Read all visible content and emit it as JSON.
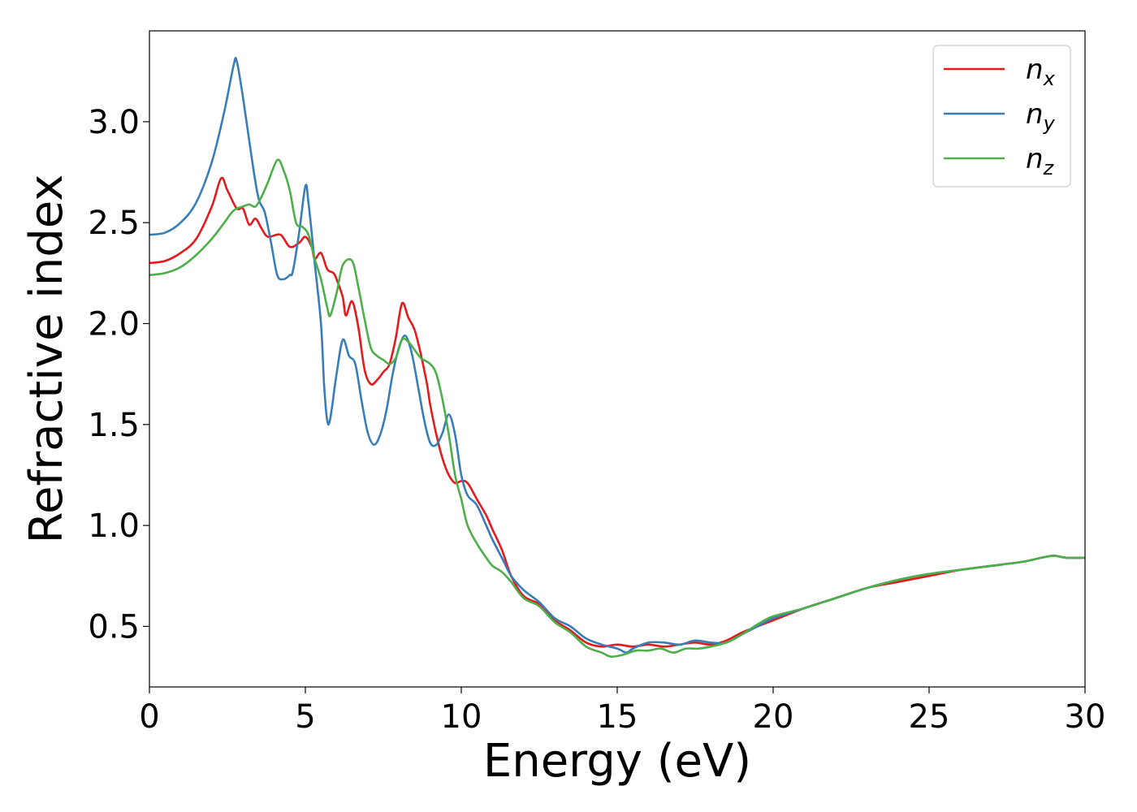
{
  "chart_data": {
    "type": "line",
    "title": "",
    "xlabel": "Energy (eV)",
    "ylabel": "Refractive index",
    "xlim": [
      0,
      30
    ],
    "ylim": [
      0.2,
      3.45
    ],
    "xticks": [
      0,
      5,
      10,
      15,
      20,
      25,
      30
    ],
    "xtick_labels": [
      "0",
      "5",
      "10",
      "15",
      "20",
      "25",
      "30"
    ],
    "yticks": [
      0.5,
      1.0,
      1.5,
      2.0,
      2.5,
      3.0
    ],
    "ytick_labels": [
      "0.5",
      "1.0",
      "1.5",
      "2.0",
      "2.5",
      "3.0"
    ],
    "grid": false,
    "legend_position": "top-right",
    "series": [
      {
        "name": "n_x",
        "label_base": "n",
        "label_sub": "x",
        "color": "#e41a1c",
        "points": [
          [
            0,
            2.3
          ],
          [
            0.5,
            2.31
          ],
          [
            1.0,
            2.35
          ],
          [
            1.5,
            2.42
          ],
          [
            2.0,
            2.58
          ],
          [
            2.3,
            2.72
          ],
          [
            2.5,
            2.66
          ],
          [
            2.8,
            2.57
          ],
          [
            3.0,
            2.57
          ],
          [
            3.2,
            2.49
          ],
          [
            3.4,
            2.52
          ],
          [
            3.6,
            2.47
          ],
          [
            3.8,
            2.43
          ],
          [
            4.2,
            2.44
          ],
          [
            4.5,
            2.38
          ],
          [
            4.8,
            2.4
          ],
          [
            5.0,
            2.43
          ],
          [
            5.2,
            2.38
          ],
          [
            5.3,
            2.32
          ],
          [
            5.5,
            2.35
          ],
          [
            5.7,
            2.27
          ],
          [
            5.9,
            2.25
          ],
          [
            6.0,
            2.22
          ],
          [
            6.2,
            2.13
          ],
          [
            6.3,
            2.04
          ],
          [
            6.5,
            2.11
          ],
          [
            6.7,
            1.98
          ],
          [
            6.9,
            1.77
          ],
          [
            7.1,
            1.7
          ],
          [
            7.3,
            1.72
          ],
          [
            7.5,
            1.76
          ],
          [
            7.7,
            1.8
          ],
          [
            7.9,
            1.93
          ],
          [
            8.1,
            2.1
          ],
          [
            8.3,
            2.03
          ],
          [
            8.5,
            1.97
          ],
          [
            8.7,
            1.85
          ],
          [
            8.9,
            1.7
          ],
          [
            9.0,
            1.6
          ],
          [
            9.2,
            1.45
          ],
          [
            9.4,
            1.33
          ],
          [
            9.6,
            1.25
          ],
          [
            9.8,
            1.21
          ],
          [
            10.0,
            1.22
          ],
          [
            10.2,
            1.21
          ],
          [
            10.5,
            1.13
          ],
          [
            10.8,
            1.05
          ],
          [
            11.0,
            0.98
          ],
          [
            11.3,
            0.88
          ],
          [
            11.6,
            0.75
          ],
          [
            12.0,
            0.65
          ],
          [
            12.5,
            0.61
          ],
          [
            13.0,
            0.53
          ],
          [
            13.5,
            0.48
          ],
          [
            14.0,
            0.42
          ],
          [
            14.5,
            0.4
          ],
          [
            15.0,
            0.41
          ],
          [
            15.5,
            0.4
          ],
          [
            16.0,
            0.41
          ],
          [
            16.5,
            0.4
          ],
          [
            17.0,
            0.41
          ],
          [
            17.5,
            0.42
          ],
          [
            18.0,
            0.41
          ],
          [
            18.5,
            0.43
          ],
          [
            19.0,
            0.47
          ],
          [
            19.5,
            0.5
          ],
          [
            20.0,
            0.53
          ],
          [
            21.0,
            0.59
          ],
          [
            22.0,
            0.64
          ],
          [
            23.0,
            0.69
          ],
          [
            24.0,
            0.72
          ],
          [
            25.0,
            0.75
          ],
          [
            26.0,
            0.78
          ],
          [
            27.0,
            0.8
          ],
          [
            28.0,
            0.82
          ],
          [
            28.6,
            0.84
          ],
          [
            29.0,
            0.85
          ],
          [
            29.4,
            0.84
          ],
          [
            30.0,
            0.84
          ]
        ]
      },
      {
        "name": "n_y",
        "label_base": "n",
        "label_sub": "y",
        "color": "#377eb8",
        "points": [
          [
            0,
            2.44
          ],
          [
            0.5,
            2.45
          ],
          [
            1.0,
            2.5
          ],
          [
            1.5,
            2.6
          ],
          [
            2.0,
            2.8
          ],
          [
            2.4,
            3.05
          ],
          [
            2.7,
            3.28
          ],
          [
            2.8,
            3.3
          ],
          [
            3.0,
            3.12
          ],
          [
            3.3,
            2.8
          ],
          [
            3.5,
            2.62
          ],
          [
            3.7,
            2.55
          ],
          [
            3.9,
            2.4
          ],
          [
            4.1,
            2.24
          ],
          [
            4.3,
            2.22
          ],
          [
            4.5,
            2.24
          ],
          [
            4.6,
            2.26
          ],
          [
            4.8,
            2.45
          ],
          [
            5.0,
            2.68
          ],
          [
            5.1,
            2.6
          ],
          [
            5.3,
            2.3
          ],
          [
            5.5,
            2.0
          ],
          [
            5.6,
            1.7
          ],
          [
            5.7,
            1.52
          ],
          [
            5.8,
            1.53
          ],
          [
            6.0,
            1.75
          ],
          [
            6.2,
            1.92
          ],
          [
            6.4,
            1.84
          ],
          [
            6.6,
            1.8
          ],
          [
            6.8,
            1.62
          ],
          [
            7.0,
            1.46
          ],
          [
            7.2,
            1.4
          ],
          [
            7.4,
            1.45
          ],
          [
            7.6,
            1.57
          ],
          [
            7.8,
            1.75
          ],
          [
            8.0,
            1.88
          ],
          [
            8.2,
            1.94
          ],
          [
            8.4,
            1.86
          ],
          [
            8.6,
            1.7
          ],
          [
            8.8,
            1.53
          ],
          [
            9.0,
            1.41
          ],
          [
            9.2,
            1.4
          ],
          [
            9.4,
            1.46
          ],
          [
            9.6,
            1.55
          ],
          [
            9.8,
            1.45
          ],
          [
            10.0,
            1.25
          ],
          [
            10.2,
            1.15
          ],
          [
            10.5,
            1.1
          ],
          [
            10.8,
            1.0
          ],
          [
            11.0,
            0.93
          ],
          [
            11.3,
            0.84
          ],
          [
            11.6,
            0.75
          ],
          [
            12.0,
            0.68
          ],
          [
            12.5,
            0.62
          ],
          [
            13.0,
            0.54
          ],
          [
            13.5,
            0.5
          ],
          [
            14.0,
            0.44
          ],
          [
            14.5,
            0.41
          ],
          [
            15.0,
            0.39
          ],
          [
            15.3,
            0.37
          ],
          [
            15.5,
            0.39
          ],
          [
            16.0,
            0.42
          ],
          [
            16.5,
            0.42
          ],
          [
            17.0,
            0.41
          ],
          [
            17.5,
            0.43
          ],
          [
            18.0,
            0.42
          ],
          [
            18.5,
            0.42
          ],
          [
            19.0,
            0.46
          ],
          [
            19.5,
            0.5
          ],
          [
            20.0,
            0.54
          ],
          [
            21.0,
            0.59
          ],
          [
            22.0,
            0.64
          ],
          [
            23.0,
            0.69
          ],
          [
            24.0,
            0.73
          ],
          [
            25.0,
            0.76
          ],
          [
            26.0,
            0.78
          ],
          [
            27.0,
            0.8
          ],
          [
            28.0,
            0.82
          ],
          [
            28.6,
            0.84
          ],
          [
            29.0,
            0.85
          ],
          [
            29.4,
            0.84
          ],
          [
            30.0,
            0.84
          ]
        ]
      },
      {
        "name": "n_z",
        "label_base": "n",
        "label_sub": "z",
        "color": "#4daf4a",
        "points": [
          [
            0,
            2.24
          ],
          [
            0.5,
            2.25
          ],
          [
            1.0,
            2.28
          ],
          [
            1.5,
            2.34
          ],
          [
            2.0,
            2.42
          ],
          [
            2.4,
            2.5
          ],
          [
            2.7,
            2.56
          ],
          [
            3.0,
            2.58
          ],
          [
            3.2,
            2.59
          ],
          [
            3.4,
            2.58
          ],
          [
            3.6,
            2.63
          ],
          [
            3.8,
            2.7
          ],
          [
            4.1,
            2.81
          ],
          [
            4.3,
            2.76
          ],
          [
            4.5,
            2.66
          ],
          [
            4.7,
            2.5
          ],
          [
            4.9,
            2.48
          ],
          [
            5.1,
            2.44
          ],
          [
            5.3,
            2.32
          ],
          [
            5.5,
            2.22
          ],
          [
            5.7,
            2.08
          ],
          [
            5.8,
            2.04
          ],
          [
            6.0,
            2.15
          ],
          [
            6.2,
            2.29
          ],
          [
            6.5,
            2.31
          ],
          [
            6.7,
            2.18
          ],
          [
            6.9,
            2.02
          ],
          [
            7.1,
            1.88
          ],
          [
            7.3,
            1.84
          ],
          [
            7.5,
            1.82
          ],
          [
            7.7,
            1.8
          ],
          [
            7.9,
            1.83
          ],
          [
            8.1,
            1.92
          ],
          [
            8.3,
            1.91
          ],
          [
            8.5,
            1.87
          ],
          [
            8.7,
            1.83
          ],
          [
            9.0,
            1.8
          ],
          [
            9.2,
            1.75
          ],
          [
            9.4,
            1.62
          ],
          [
            9.6,
            1.45
          ],
          [
            9.8,
            1.25
          ],
          [
            10.0,
            1.13
          ],
          [
            10.2,
            1.0
          ],
          [
            10.5,
            0.91
          ],
          [
            10.8,
            0.84
          ],
          [
            11.0,
            0.8
          ],
          [
            11.3,
            0.77
          ],
          [
            11.6,
            0.72
          ],
          [
            12.0,
            0.64
          ],
          [
            12.5,
            0.6
          ],
          [
            13.0,
            0.52
          ],
          [
            13.5,
            0.47
          ],
          [
            14.0,
            0.4
          ],
          [
            14.5,
            0.37
          ],
          [
            14.8,
            0.35
          ],
          [
            15.2,
            0.36
          ],
          [
            15.6,
            0.38
          ],
          [
            16.0,
            0.38
          ],
          [
            16.4,
            0.39
          ],
          [
            16.8,
            0.37
          ],
          [
            17.2,
            0.39
          ],
          [
            17.6,
            0.39
          ],
          [
            18.0,
            0.4
          ],
          [
            18.5,
            0.42
          ],
          [
            19.0,
            0.46
          ],
          [
            19.5,
            0.51
          ],
          [
            20.0,
            0.55
          ],
          [
            21.0,
            0.59
          ],
          [
            22.0,
            0.64
          ],
          [
            23.0,
            0.69
          ],
          [
            24.0,
            0.73
          ],
          [
            25.0,
            0.76
          ],
          [
            26.0,
            0.78
          ],
          [
            27.0,
            0.8
          ],
          [
            28.0,
            0.82
          ],
          [
            28.6,
            0.84
          ],
          [
            29.0,
            0.85
          ],
          [
            29.4,
            0.84
          ],
          [
            30.0,
            0.84
          ]
        ]
      }
    ]
  }
}
